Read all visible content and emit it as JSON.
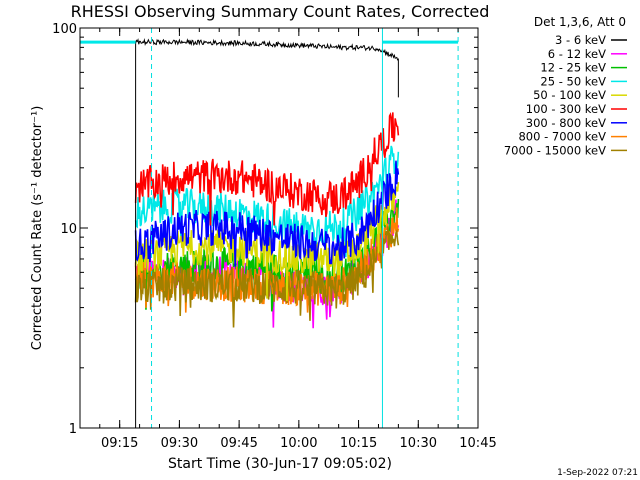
{
  "chart_data": {
    "type": "line",
    "title": "RHESSI Observing Summary Count Rates, Corrected",
    "xlabel": "Start Time (30-Jun-17 09:05:02)",
    "ylabel": "Corrected Count Rate (s⁻¹ detector⁻¹)",
    "yscale": "log",
    "ylim": [
      1,
      100
    ],
    "xlim": [
      "09:05:02",
      "10:45:00"
    ],
    "x_ticks": [
      "09:15",
      "09:30",
      "09:45",
      "10:00",
      "10:15",
      "10:30",
      "10:45"
    ],
    "y_ticks": [
      "1",
      "10",
      "100"
    ],
    "legend_header": "Det 1,3,6, Att 0",
    "legend_position": "top-right",
    "data_start": "09:19:00",
    "data_end": "10:25:00",
    "vertical_markers": [
      {
        "time": "09:05:02",
        "style": "solid"
      },
      {
        "time": "09:23:00",
        "style": "dashed"
      },
      {
        "time": "10:21:00",
        "style": "solid"
      },
      {
        "time": "10:40:00",
        "style": "dashed"
      }
    ],
    "horizontal_bars": [
      {
        "from": "09:05:02",
        "to": "09:19:00",
        "y": 85
      },
      {
        "from": "10:21:00",
        "to": "10:40:00",
        "y": 85
      }
    ],
    "x_samples": [
      "09:19",
      "09:30",
      "09:45",
      "10:00",
      "10:10",
      "10:15",
      "10:20",
      "10:25"
    ],
    "series": [
      {
        "name": "3 - 6 keV",
        "color": "#000000",
        "values": [
          85,
          85,
          84,
          82,
          80,
          80,
          79,
          70
        ]
      },
      {
        "name": "6 - 12 keV",
        "color": "#ff00ff",
        "values": [
          6,
          6,
          6,
          5,
          5,
          6,
          8,
          12
        ]
      },
      {
        "name": "12 - 25 keV",
        "color": "#00c000",
        "values": [
          6,
          6.5,
          6.5,
          6,
          5.5,
          6.5,
          9,
          13
        ]
      },
      {
        "name": "25 - 50 keV",
        "color": "#00e8e8",
        "values": [
          12,
          13,
          12,
          10,
          10,
          12,
          16,
          25
        ]
      },
      {
        "name": "50 - 100 keV",
        "color": "#d8d800",
        "values": [
          7,
          8,
          8,
          7,
          7,
          8,
          11,
          15
        ]
      },
      {
        "name": "100 - 300 keV",
        "color": "#ff0000",
        "values": [
          16,
          18,
          18,
          15,
          14,
          17,
          25,
          34
        ]
      },
      {
        "name": "300 - 800 keV",
        "color": "#0000ff",
        "values": [
          8,
          10,
          10,
          8.5,
          8,
          9,
          13,
          19
        ]
      },
      {
        "name": "800 - 7000 keV",
        "color": "#ff8000",
        "values": [
          5.5,
          5.5,
          5.2,
          5,
          5,
          6,
          8,
          11
        ]
      },
      {
        "name": "7000 - 15000 keV",
        "color": "#a08000",
        "values": [
          5,
          5.2,
          5.2,
          5,
          4.8,
          5.5,
          7,
          10
        ]
      }
    ]
  },
  "footer": {
    "timestamp": "1-Sep-2022 07:21"
  }
}
